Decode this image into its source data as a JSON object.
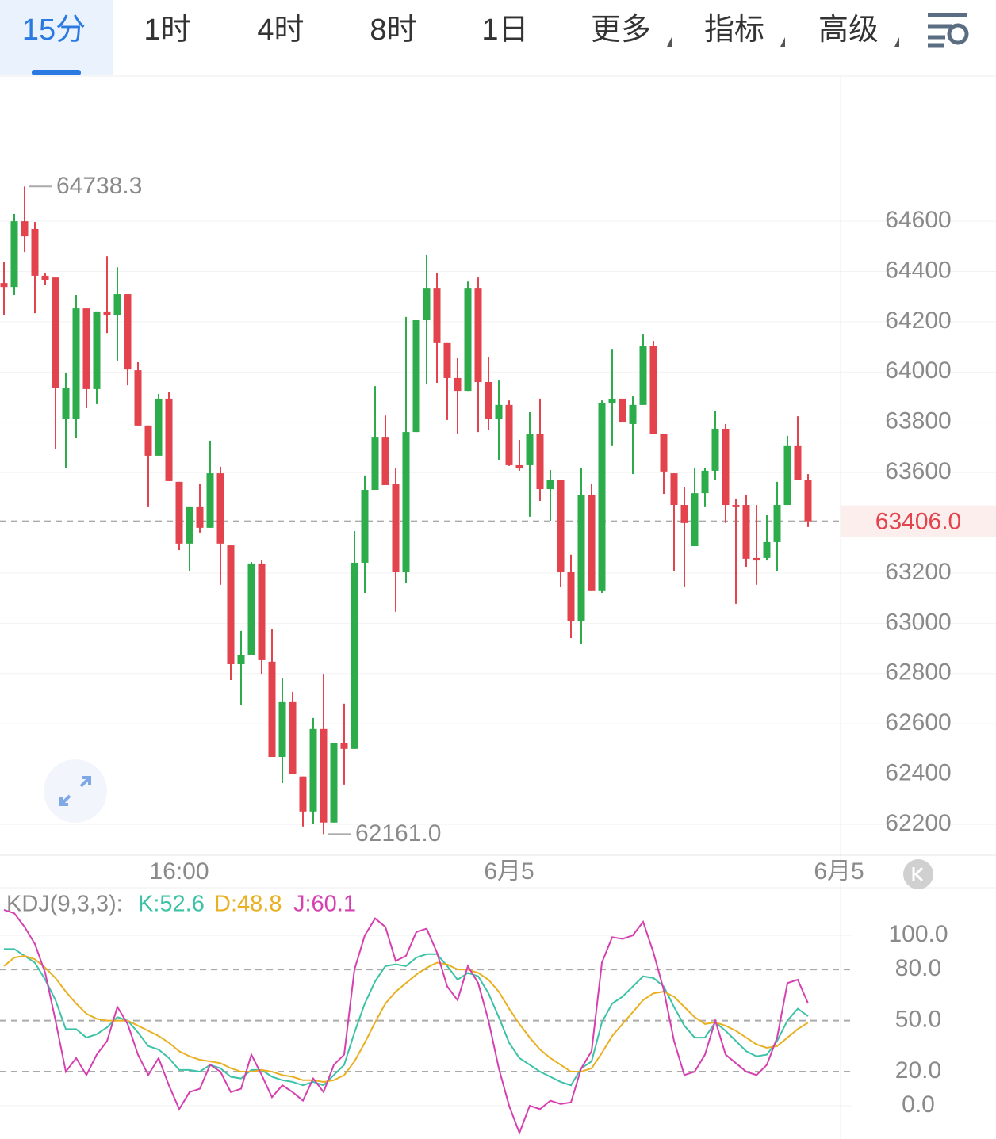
{
  "tabs": [
    "15分",
    "1时",
    "4时",
    "8时",
    "1日",
    "更多",
    "指标",
    "高级"
  ],
  "chart_data": [
    {
      "type": "candlestick",
      "up_color": "#2dac4c",
      "down_color": "#e2434d",
      "ylim": [
        62080,
        65165
      ],
      "yticks": [
        64600,
        64400,
        64200,
        64000,
        63800,
        63600,
        63200,
        63000,
        62800,
        62600,
        62400,
        62200
      ],
      "grid": true,
      "xticks": [
        {
          "value": 17,
          "label": "16:00"
        },
        {
          "value": 49,
          "label": "6月5"
        },
        {
          "value": 81,
          "label": "6月5"
        }
      ],
      "max_label": "64738.3",
      "min_label": "62161.0",
      "last_price": {
        "value": 63406,
        "label": "63406.0",
        "color": "#e2434d"
      },
      "open": [
        64354,
        64338,
        64600,
        64569,
        64383,
        64376,
        63812,
        63812,
        64253,
        63932,
        64241,
        64228,
        64310,
        64007,
        63787,
        63667,
        63894,
        63563,
        63317,
        63462,
        63380,
        63597,
        63310,
        62837,
        62875,
        63238,
        62847,
        62468,
        62686,
        62390,
        62251,
        62579,
        62207,
        62522,
        62500,
        63241,
        63531,
        63742,
        63553,
        63203,
        63761,
        64206,
        64335,
        64115,
        63976,
        63925,
        64335,
        63960,
        63812,
        63869,
        63629,
        63629,
        63752,
        63534,
        63569,
        63203,
        63008,
        63512,
        63131,
        63878,
        63894,
        63793,
        63869,
        64102,
        63752,
        63597,
        63471,
        63307,
        63518,
        63607,
        63774,
        63471,
        63471,
        63260,
        63260,
        63323,
        63471,
        63705,
        63572
      ],
      "high": [
        64439,
        64629,
        64738.3,
        64597,
        64392,
        64376,
        63998,
        64307,
        64253,
        64241,
        64461,
        64417,
        64310,
        64039,
        63787,
        63913,
        63919,
        63563,
        63462,
        63556,
        63727,
        63623,
        63310,
        62970,
        63244,
        63250,
        62979,
        62781,
        62727,
        62390,
        62623,
        62799,
        62522,
        62680,
        63367,
        63588,
        63944,
        63827,
        63619,
        64219,
        64206,
        64465,
        64392,
        64115,
        64055,
        64360,
        64376,
        64061,
        63966,
        63887,
        63730,
        63840,
        63894,
        63610,
        63569,
        63273,
        63619,
        63556,
        63887,
        64092,
        63894,
        63903,
        64149,
        64124,
        63752,
        63597,
        63541,
        63619,
        63619,
        63846,
        63793,
        63493,
        63509,
        63471,
        63430,
        63563,
        63746,
        63824,
        63594
      ],
      "low": [
        64228,
        64307,
        64477,
        64234,
        64345,
        63692,
        63619,
        63739,
        63856,
        63872,
        64155,
        64045,
        63947,
        63787,
        63462,
        63667,
        63566,
        63291,
        63209,
        63361,
        63380,
        63153,
        62774,
        62673,
        62875,
        62799,
        62468,
        62364,
        62399,
        62191,
        62200,
        62161,
        62207,
        62358,
        62500,
        63121,
        63531,
        63550,
        63046,
        63162,
        63761,
        63950,
        63957,
        63809,
        63752,
        63925,
        63761,
        63768,
        63651,
        63626,
        63607,
        63424,
        63487,
        63408,
        63146,
        62941,
        62916,
        63131,
        63121,
        63705,
        63799,
        63594,
        63869,
        63752,
        63515,
        63209,
        63146,
        63307,
        63462,
        63572,
        63399,
        63077,
        63225,
        63153,
        63250,
        63209,
        63471,
        63572,
        63383
      ],
      "close": [
        64338,
        64600,
        64540,
        64383,
        64367,
        63938,
        63938,
        64253,
        63932,
        64241,
        64228,
        64310,
        64010,
        63787,
        63667,
        63894,
        63566,
        63317,
        63462,
        63380,
        63597,
        63317,
        62837,
        62875,
        63238,
        62853,
        62468,
        62686,
        62399,
        62251,
        62579,
        62207,
        62522,
        62500,
        63241,
        63531,
        63742,
        63550,
        63203,
        63761,
        64206,
        64335,
        64115,
        63976,
        63925,
        64335,
        63960,
        63812,
        63869,
        63629,
        63616,
        63752,
        63534,
        63569,
        63203,
        63008,
        63512,
        63131,
        63878,
        63894,
        63799,
        63869,
        64102,
        63752,
        63604,
        63471,
        63399,
        63518,
        63607,
        63774,
        63471,
        63462,
        63257,
        63250,
        63323,
        63471,
        63705,
        63572,
        63406
      ]
    },
    {
      "type": "line",
      "title": "KDJ(9,3,3):",
      "ylim": [
        -20,
        128
      ],
      "yticks": [
        {
          "value": 100,
          "label": "100.0"
        },
        {
          "value": 80,
          "label": "80.0",
          "dashed": true
        },
        {
          "value": 50,
          "label": "50.0",
          "dashed": true
        },
        {
          "value": 20,
          "label": "20.0",
          "dashed": true
        },
        {
          "value": 0,
          "label": "0.0"
        }
      ],
      "series": [
        {
          "label": "K:52.6",
          "color": "#3cc2a6",
          "values": [
            92,
            92,
            88,
            84,
            74,
            62,
            45,
            45,
            40,
            42,
            46,
            52,
            50,
            43,
            35,
            33,
            28,
            21,
            21,
            20,
            24,
            22,
            17,
            16,
            21,
            21,
            17,
            15,
            14,
            12,
            14,
            12,
            18,
            24,
            43,
            60,
            73,
            82,
            83,
            82,
            87,
            89,
            89,
            82,
            74,
            78,
            76,
            66,
            52,
            37,
            28,
            24,
            20,
            17,
            14,
            12,
            22,
            26,
            49,
            60,
            64,
            70,
            76,
            75,
            70,
            58,
            47,
            40,
            40,
            49,
            44,
            38,
            32,
            29,
            30,
            38,
            50,
            57,
            52.6
          ]
        },
        {
          "label": "D:48.8",
          "color": "#e9b022",
          "values": [
            82,
            87,
            88,
            86,
            81,
            75,
            67,
            60,
            54,
            51,
            50,
            50,
            50,
            47,
            44,
            41,
            37,
            32,
            29,
            27,
            26,
            25,
            22,
            20,
            20,
            21,
            20,
            18,
            17,
            15,
            15,
            14,
            15,
            18,
            26,
            37,
            49,
            60,
            67,
            72,
            77,
            81,
            84,
            83,
            80,
            80,
            78,
            74,
            67,
            57,
            48,
            40,
            33,
            28,
            24,
            20,
            20,
            22,
            31,
            41,
            48,
            55,
            62,
            66,
            67,
            64,
            58,
            52,
            48,
            49,
            47,
            44,
            40,
            36,
            34,
            35,
            40,
            45,
            48.8
          ]
        },
        {
          "label": "J:60.1",
          "color": "#d63fb0",
          "values": [
            115,
            113,
            105,
            95,
            78,
            50,
            20,
            28,
            18,
            30,
            38,
            58,
            48,
            30,
            18,
            28,
            12,
            -2,
            8,
            10,
            24,
            20,
            8,
            10,
            30,
            18,
            5,
            12,
            8,
            3,
            16,
            8,
            24,
            30,
            80,
            100,
            110,
            105,
            85,
            88,
            102,
            104,
            90,
            70,
            62,
            82,
            72,
            50,
            22,
            0,
            -16,
            0,
            -2,
            3,
            1,
            2,
            22,
            32,
            84,
            99,
            98,
            100,
            108,
            90,
            68,
            38,
            18,
            20,
            30,
            50,
            30,
            25,
            20,
            18,
            24,
            40,
            72,
            74,
            60.1
          ]
        }
      ]
    }
  ]
}
